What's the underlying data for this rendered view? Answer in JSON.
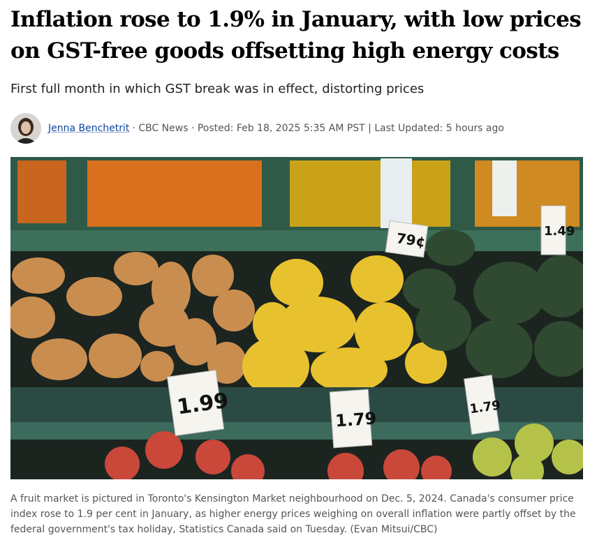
{
  "headline": "Inflation rose to 1.9% in January, with low prices on GST-free goods offsetting high energy costs",
  "subtitle": "First full month in which GST break was in effect, distorting prices",
  "byline": {
    "author": "Jenna Benchetrit",
    "details": "· CBC News · Posted: Feb 18, 2025 5:35 AM PST | Last Updated: 5 hours ago"
  },
  "image": {
    "price_tags": [
      "79¢",
      "1.49",
      "1.99",
      "1.79",
      "1.79"
    ]
  },
  "caption": "A fruit market is pictured in Toronto's Kensington Market neighbourhood on Dec. 5, 2024. Canada's consumer price index rose to 1.9 per cent in January, as higher energy prices weighing on overall inflation were partly offset by the federal government's tax holiday, Statistics Canada said on Tuesday. (Evan Mitsui/CBC)"
}
